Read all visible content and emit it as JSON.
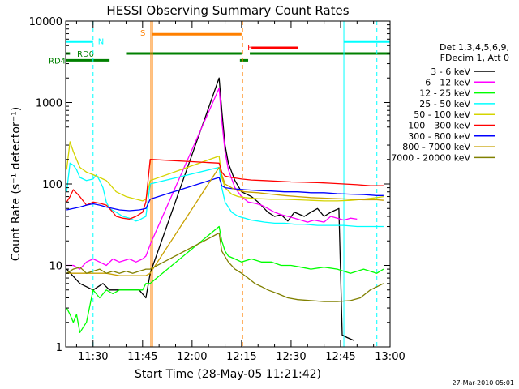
{
  "chart_data": {
    "type": "line",
    "title": "HESSI Observing Summary Count Rates",
    "xlabel": "Start Time (28-May-05 11:21:42)",
    "ylabel": "Count Rate (s⁻¹ detector⁻¹)",
    "x_unit": "minutes of day",
    "xlim": [
      681.7,
      780
    ],
    "ylim": [
      1,
      10000
    ],
    "yscale": "log",
    "x_ticks": [
      {
        "x": 690,
        "label": "11:30"
      },
      {
        "x": 705,
        "label": "11:45"
      },
      {
        "x": 720,
        "label": "12:00"
      },
      {
        "x": 735,
        "label": "12:15"
      },
      {
        "x": 750,
        "label": "12:30"
      },
      {
        "x": 765,
        "label": "12:45"
      },
      {
        "x": 780,
        "label": "13:00"
      }
    ],
    "y_ticks": [
      {
        "y": 1,
        "label": "1"
      },
      {
        "y": 10,
        "label": "10"
      },
      {
        "y": 100,
        "label": "100"
      },
      {
        "y": 1000,
        "label": "1000"
      },
      {
        "y": 10000,
        "label": "10000"
      }
    ],
    "legend_title": [
      "Det 1,3,4,5,6,9,",
      "FDecim 1, Att 0"
    ],
    "legend_position": "right",
    "series": [
      {
        "name": "3 - 6 keV",
        "color": "#000000",
        "x": [
          682,
          686,
          690,
          693,
          695,
          698,
          701,
          704,
          706,
          707.3,
          728.2,
          729,
          730,
          731,
          733,
          735,
          738,
          740,
          743,
          745,
          747,
          749,
          751,
          754,
          756,
          758,
          760,
          762,
          764.5,
          765.5,
          767,
          769
        ],
        "y": [
          9,
          6,
          5,
          6,
          5,
          5,
          5,
          5,
          4,
          8,
          2000,
          800,
          300,
          180,
          110,
          80,
          70,
          60,
          45,
          40,
          42,
          35,
          45,
          40,
          45,
          50,
          40,
          45,
          50,
          1.4,
          1.3,
          1.2
        ]
      },
      {
        "name": "6 - 12 keV",
        "color": "#ff00ff",
        "x": [
          682,
          684,
          686,
          688,
          690,
          692,
          694,
          696,
          698,
          701,
          703,
          705,
          706,
          707.3,
          728.2,
          729,
          730,
          731,
          733,
          735,
          737,
          739,
          741,
          743,
          745,
          747,
          749,
          751,
          753,
          755,
          757,
          760,
          762,
          764,
          766,
          768,
          770
        ],
        "y": [
          10,
          10,
          9,
          11,
          12,
          11,
          10,
          12,
          11,
          12,
          11,
          12,
          13,
          18,
          1500,
          600,
          250,
          150,
          90,
          70,
          60,
          58,
          55,
          50,
          45,
          42,
          40,
          38,
          36,
          34,
          36,
          34,
          40,
          38,
          36,
          38,
          37
        ]
      },
      {
        "name": "12 - 25 keV",
        "color": "#00ff00",
        "x": [
          682,
          683,
          684,
          685,
          686,
          688,
          690,
          692,
          694,
          696,
          698,
          701,
          703,
          705,
          706,
          707.3,
          728.2,
          729,
          730,
          731,
          733,
          735,
          738,
          741,
          744,
          747,
          750,
          753,
          756,
          760,
          764,
          768,
          772,
          776,
          778
        ],
        "y": [
          3,
          2.5,
          2,
          2.5,
          1.5,
          2,
          5,
          4,
          5,
          4.5,
          5,
          5,
          5,
          5,
          6,
          6,
          30,
          20,
          15,
          13,
          12,
          11,
          12,
          11,
          11,
          10,
          10,
          9.5,
          9,
          9.5,
          9,
          8,
          9,
          8,
          9
        ]
      },
      {
        "name": "25 - 50 keV",
        "color": "#00ffff",
        "x": [
          682,
          683,
          684,
          685,
          686,
          687,
          688,
          690,
          691,
          692,
          693,
          694,
          695,
          697,
          699,
          701,
          703,
          704,
          705,
          706,
          707.3,
          728.2,
          729,
          730,
          732,
          734,
          736,
          738,
          740,
          742,
          745,
          748,
          751,
          754,
          758,
          762,
          766,
          770,
          774,
          778
        ],
        "y": [
          80,
          180,
          170,
          150,
          120,
          115,
          110,
          115,
          130,
          110,
          90,
          60,
          50,
          45,
          40,
          38,
          35,
          36,
          38,
          40,
          100,
          160,
          90,
          60,
          45,
          40,
          38,
          36,
          35,
          34,
          33,
          33,
          32,
          32,
          31,
          31,
          31,
          30,
          30,
          30
        ]
      },
      {
        "name": "50 - 100 keV",
        "color": "#d4d400",
        "x": [
          682,
          683,
          684,
          685,
          686,
          688,
          690,
          692,
          694,
          695,
          697,
          700,
          703,
          705,
          706,
          707.3,
          728.2,
          729,
          730,
          732,
          734,
          736,
          738,
          740,
          744,
          748,
          752,
          756,
          760,
          764,
          768,
          772,
          776,
          778
        ],
        "y": [
          150,
          330,
          250,
          200,
          160,
          140,
          130,
          120,
          110,
          100,
          80,
          70,
          65,
          62,
          65,
          110,
          220,
          120,
          90,
          75,
          70,
          68,
          67,
          66,
          65,
          65,
          64,
          63,
          62,
          62,
          63,
          65,
          68,
          70
        ]
      },
      {
        "name": "100 - 300 keV",
        "color": "#ff0000",
        "x": [
          682,
          683,
          684,
          686,
          688,
          690,
          692,
          694,
          695,
          696,
          697,
          699,
          701,
          703,
          705,
          706,
          707.3,
          728.2,
          729,
          730,
          732,
          735,
          738,
          742,
          746,
          750,
          754,
          758,
          762,
          766,
          770,
          774,
          778
        ],
        "y": [
          60,
          70,
          85,
          70,
          55,
          60,
          58,
          55,
          50,
          45,
          40,
          38,
          37,
          40,
          45,
          60,
          200,
          180,
          140,
          125,
          120,
          115,
          112,
          110,
          108,
          106,
          105,
          104,
          102,
          100,
          98,
          95,
          95
        ]
      },
      {
        "name": "300 - 800 keV",
        "color": "#0000ff",
        "x": [
          682,
          684,
          686,
          688,
          690,
          692,
          694,
          696,
          698,
          701,
          704,
          706,
          707.3,
          728.2,
          729,
          730,
          733,
          736,
          740,
          744,
          748,
          752,
          756,
          760,
          764,
          768,
          772,
          776,
          778
        ],
        "y": [
          48,
          50,
          52,
          55,
          57,
          55,
          52,
          50,
          48,
          47,
          48,
          50,
          65,
          120,
          95,
          90,
          87,
          85,
          83,
          82,
          80,
          80,
          78,
          78,
          76,
          75,
          74,
          72,
          72
        ]
      },
      {
        "name": "800 - 7000 keV",
        "color": "#c8a000",
        "x": [
          682,
          686,
          690,
          694,
          698,
          702,
          706,
          707.3,
          728.2,
          730,
          733,
          736,
          740,
          744,
          748,
          752,
          756,
          760,
          764,
          768,
          772,
          776,
          778
        ],
        "y": [
          8,
          8,
          8,
          8,
          7.5,
          7.5,
          7.5,
          8,
          160,
          100,
          85,
          80,
          78,
          75,
          72,
          70,
          68,
          67,
          66,
          65,
          64,
          64,
          63
        ]
      },
      {
        "name": "7000 - 20000 keV",
        "color": "#808000",
        "x": [
          682,
          684,
          686,
          688,
          690,
          692,
          694,
          696,
          698,
          700,
          702,
          704,
          706,
          707.3,
          728.2,
          729,
          731,
          733,
          735,
          737,
          739,
          741,
          743,
          746,
          749,
          752,
          756,
          760,
          764,
          768,
          771,
          774,
          778
        ],
        "y": [
          8,
          9,
          9.5,
          8,
          8.5,
          9,
          8,
          8.5,
          8,
          8.5,
          8,
          8.5,
          9,
          9,
          25,
          15,
          11,
          9,
          8,
          7,
          6,
          5.5,
          5,
          4.5,
          4,
          3.8,
          3.7,
          3.6,
          3.6,
          3.7,
          4,
          5,
          6
        ]
      }
    ],
    "flags": [
      {
        "label": "N",
        "color": "#00ffff",
        "y": 5600,
        "segments": [
          [
            681.7,
            690
          ]
        ]
      },
      {
        "label": "",
        "color": "#00ffff",
        "y": 5600,
        "segments": [
          [
            766,
            780
          ]
        ]
      },
      {
        "label": "S",
        "color": "#ff8000",
        "y": 6900,
        "segments": [
          [
            708,
            735
          ]
        ]
      },
      {
        "label": "F",
        "color": "#ff0000",
        "y": 4700,
        "segments": [
          [
            738,
            752
          ]
        ]
      },
      {
        "label": "RD0",
        "color": "#008000",
        "y": 4000,
        "segments": [
          [
            681.7,
            683
          ],
          [
            700,
            735
          ],
          [
            737.5,
            780
          ]
        ]
      },
      {
        "label": "RD4",
        "color": "#008000",
        "y": 3300,
        "segments": [
          [
            681.7,
            695
          ],
          [
            734.5,
            737
          ]
        ]
      }
    ],
    "vertical_markers": [
      {
        "x": 681.8,
        "color": "#00ffff",
        "style": "solid"
      },
      {
        "x": 690,
        "color": "#00ffff",
        "style": "dashed"
      },
      {
        "x": 707.5,
        "color": "#ff8000",
        "style": "solid"
      },
      {
        "x": 708,
        "color": "#ff8000",
        "style": "solid"
      },
      {
        "x": 735.3,
        "color": "#ff8000",
        "style": "dashed"
      },
      {
        "x": 766,
        "color": "#00ffff",
        "style": "solid"
      },
      {
        "x": 776,
        "color": "#00ffff",
        "style": "dashed"
      }
    ],
    "grid": false
  },
  "footer": {
    "timestamp": "27-Mar-2010 05:01"
  }
}
